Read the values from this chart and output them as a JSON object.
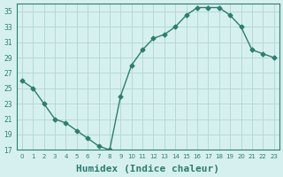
{
  "x": [
    0,
    1,
    2,
    3,
    4,
    5,
    6,
    7,
    8,
    9,
    10,
    11,
    12,
    13,
    14,
    15,
    16,
    17,
    18,
    19,
    20,
    21,
    22,
    23
  ],
  "y": [
    26,
    25,
    23,
    21,
    20.5,
    19.5,
    18.5,
    17.5,
    17,
    24,
    28,
    30,
    31.5,
    32,
    33,
    34.5,
    35.5,
    35.5,
    35.5,
    34.5,
    33,
    30,
    29.5,
    29
  ],
  "line_color": "#2e7d6e",
  "marker": "D",
  "marker_size": 2.5,
  "bg_color": "#d6f0f0",
  "grid_color": "#b8d8d8",
  "tick_color": "#2e7d6e",
  "xlabel": "Humidex (Indice chaleur)",
  "xlabel_fontsize": 8,
  "ylim": [
    17,
    36
  ],
  "yticks": [
    17,
    19,
    21,
    23,
    25,
    27,
    29,
    31,
    33,
    35
  ],
  "xlim": [
    -0.5,
    23.5
  ],
  "xticks": [
    0,
    1,
    2,
    3,
    4,
    5,
    6,
    7,
    8,
    9,
    10,
    11,
    12,
    13,
    14,
    15,
    16,
    17,
    18,
    19,
    20,
    21,
    22,
    23
  ]
}
